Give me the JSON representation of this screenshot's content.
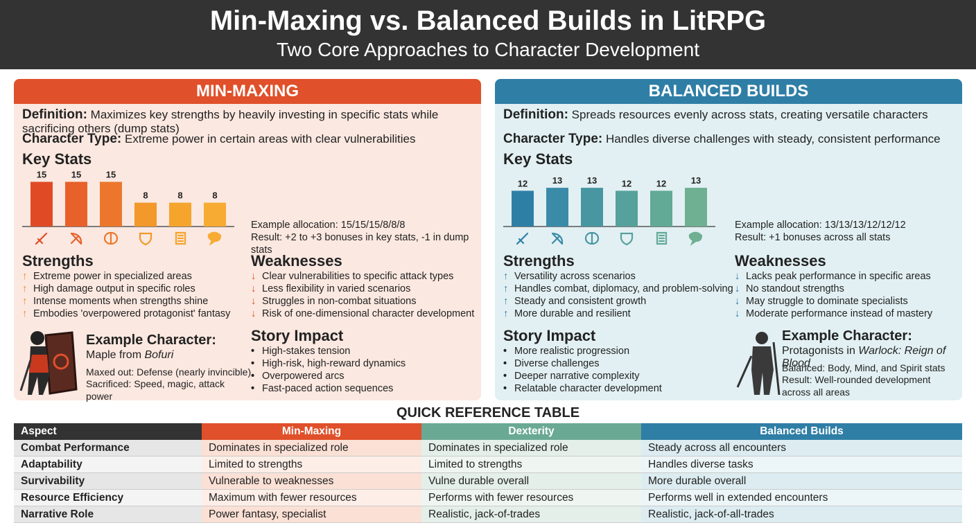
{
  "header": {
    "title": "Min-Maxing vs. Balanced Builds in LitRPG",
    "subtitle": "Two Core Approaches to Character Development"
  },
  "panels": [
    {
      "title": "MIN-MAXING",
      "definition": {
        "label": "Definition:",
        "text": "Maximizes key strengths by heavily investing in specific stats while sacrificing others (dump stats)"
      },
      "character_type": {
        "label": "Character Type:",
        "text": "Extreme power in certain areas with clear vulnerabilities"
      },
      "key_stats": {
        "title": "Key Stats",
        "values": [
          15,
          15,
          15,
          8,
          8,
          8
        ],
        "colors": [
          "#e04b25",
          "#e8602a",
          "#ec772c",
          "#f3982a",
          "#f5a42c",
          "#f7ab32"
        ]
      },
      "allocation": [
        "Example allocation: 15/15/15/8/8/8",
        "Result: +2 to +3 bonuses in key stats, -1 in dump stats"
      ],
      "strengths": {
        "title": "Strengths",
        "items": [
          "Extreme power in specialized areas",
          "High damage output in specific roles",
          "Intense moments when strengths shine",
          "Embodies 'overpowered protagonist' fantasy"
        ]
      },
      "weaknesses": {
        "title": "Weaknesses",
        "items": [
          "Clear vulnerabilities to specific attack types",
          "Less flexibility in varied scenarios",
          "Struggles in non-combat situations",
          "Risk of one-dimensional character development"
        ]
      },
      "example": {
        "title": "Example Character:",
        "name": "Maple from",
        "name_italic": "Bofuri",
        "lines": [
          "Maxed out: Defense (nearly invincible)",
          "Sacrificed: Speed, magic, attack power"
        ]
      },
      "story": {
        "title": "Story Impact",
        "items": [
          "High-stakes tension",
          "High-risk, high-reward dynamics",
          "Overpowered arcs",
          "Fast-paced action sequences"
        ]
      }
    },
    {
      "title": "BALANCED BUILDS",
      "definition": {
        "label": "Definition:",
        "text": "Spreads resources evenly across stats, creating versatile characters"
      },
      "character_type": {
        "label": "Character Type:",
        "text": "Handles diverse challenges with steady, consistent performance"
      },
      "key_stats": {
        "title": "Key Stats",
        "values": [
          12,
          13,
          13,
          12,
          12,
          13
        ],
        "colors": [
          "#2d7fa6",
          "#3a8ba8",
          "#4896a2",
          "#56a19c",
          "#62a996",
          "#6faf92"
        ]
      },
      "allocation": [
        "Example allocation: 13/13/13/12/12/12",
        "Result: +1 bonuses across all stats"
      ],
      "strengths": {
        "title": "Strengths",
        "items": [
          "Versatility across scenarios",
          "Handles combat, diplomacy, and problem-solving",
          "Steady and consistent growth",
          "More durable and resilient"
        ]
      },
      "weaknesses": {
        "title": "Weaknesses",
        "items": [
          "Lacks peak performance in specific areas",
          "No standout strengths",
          "May struggle to dominate specialists",
          "Moderate performance instead of mastery"
        ]
      },
      "example": {
        "title": "Example Character:",
        "name": "Protagonists in",
        "name_italic": "Warlock: Reign of Blood",
        "lines": [
          "Balanced: Body, Mind, and Spirit stats",
          "Result: Well-rounded development across all areas"
        ]
      },
      "story": {
        "title": "Story Impact",
        "items": [
          "More realistic progression",
          "Diverse challenges",
          "Deeper narrative complexity",
          "Relatable character development"
        ]
      }
    }
  ],
  "table": {
    "title": "QUICK REFERENCE TABLE",
    "columns": [
      "Aspect",
      "Min-Maxing",
      "Dexterity",
      "Balanced Builds"
    ],
    "rows": [
      [
        "Combat Performance",
        "Dominates in specialized role",
        "Dominates in specialized role",
        "Steady across all encounters"
      ],
      [
        "Adaptability",
        "Limited to strengths",
        "Limited to strengths",
        "Handles diverse tasks"
      ],
      [
        "Survivability",
        "Vulnerable to weaknesses",
        "Vulne durable overall",
        "More durable overall"
      ],
      [
        "Resource Efficiency",
        "Maximum with fewer resources",
        "Performs with fewer resources",
        "Performs well in extended encounters"
      ],
      [
        "Narrative Role",
        "Power fantasy, specialist",
        "Realistic, jack-of-trades",
        "Realistic, jack-of-all-trades"
      ]
    ]
  }
}
